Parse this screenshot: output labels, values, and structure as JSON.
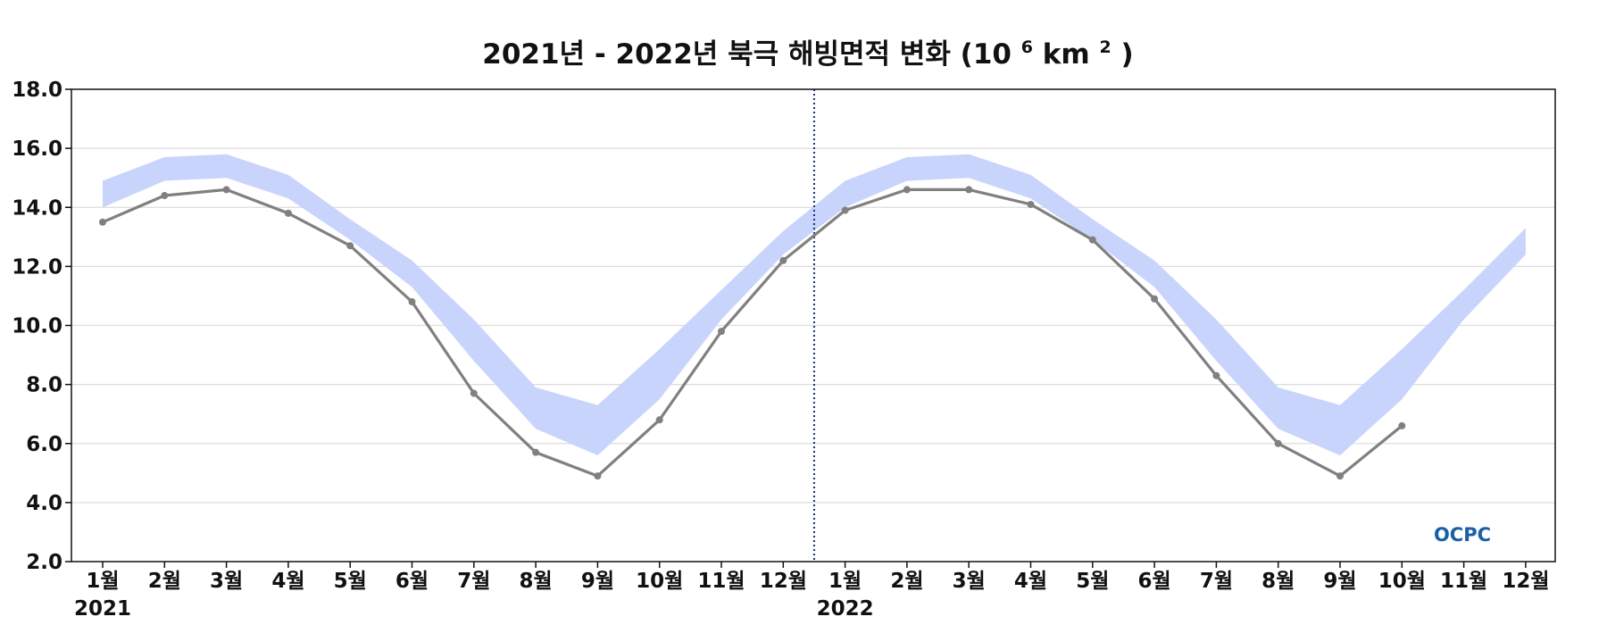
{
  "chart_data": {
    "type": "line",
    "title": "2021년 - 2022년 북극 해빙면적 변화",
    "title_unit": {
      "base": "(10",
      "exp1": "6",
      "mid": "km",
      "exp2": "2",
      "end": ")"
    },
    "ylim": [
      2.0,
      18.0
    ],
    "yticks": [
      "2.0",
      "4.0",
      "6.0",
      "8.0",
      "10.0",
      "12.0",
      "14.0",
      "16.0",
      "18.0"
    ],
    "ytick_values": [
      2,
      4,
      6,
      8,
      10,
      12,
      14,
      16,
      18
    ],
    "categories": [
      "1월",
      "2월",
      "3월",
      "4월",
      "5월",
      "6월",
      "7월",
      "8월",
      "9월",
      "10월",
      "11월",
      "12월",
      "1월",
      "2월",
      "3월",
      "4월",
      "5월",
      "6월",
      "7월",
      "8월",
      "9월",
      "10월",
      "11월",
      "12월"
    ],
    "year_labels": [
      "2021",
      "2022"
    ],
    "grid": true,
    "year_divider": "between 2021 12월 and 2022 1월",
    "series": [
      {
        "values": [
          13.5,
          14.4,
          14.6,
          13.8,
          12.7,
          10.8,
          7.7,
          5.7,
          4.9,
          6.8,
          9.8,
          12.2,
          13.9,
          14.6,
          14.6,
          14.1,
          12.9,
          10.9,
          8.3,
          6.0,
          4.9,
          6.6,
          null,
          null
        ],
        "color": "#808080"
      }
    ],
    "band": {
      "upper": [
        14.9,
        15.7,
        15.8,
        15.1,
        13.6,
        12.2,
        10.2,
        7.9,
        7.3,
        9.2,
        11.2,
        13.2,
        14.9,
        15.7,
        15.8,
        15.1,
        13.6,
        12.2,
        10.2,
        7.9,
        7.3,
        9.2,
        11.2,
        13.3
      ],
      "lower": [
        14.0,
        14.9,
        15.0,
        14.3,
        12.9,
        11.3,
        8.8,
        6.5,
        5.6,
        7.5,
        10.2,
        12.4,
        14.0,
        14.9,
        15.0,
        14.3,
        12.9,
        11.3,
        8.8,
        6.5,
        5.6,
        7.5,
        10.2,
        12.4
      ],
      "color": "#c8d4fc"
    },
    "divider_color": "#1a2e7a"
  },
  "logo": {
    "text": "OCPC"
  }
}
